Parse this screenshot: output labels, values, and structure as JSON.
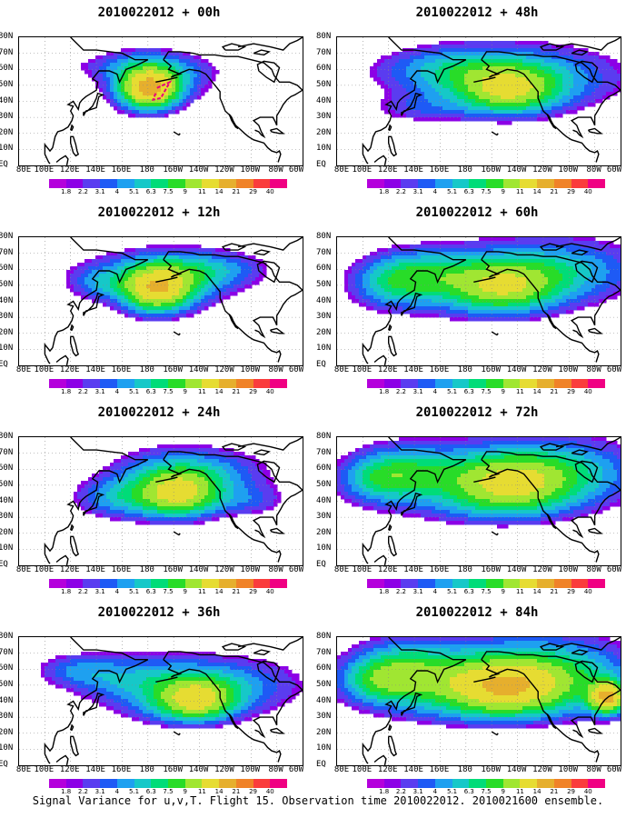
{
  "panels": [
    {
      "title": "2010022012 + 00h",
      "col": 0,
      "row": 0,
      "level": 0
    },
    {
      "title": "2010022012 + 12h",
      "col": 0,
      "row": 1,
      "level": 1
    },
    {
      "title": "2010022012 + 24h",
      "col": 0,
      "row": 2,
      "level": 2
    },
    {
      "title": "2010022012 + 36h",
      "col": 0,
      "row": 3,
      "level": 3
    },
    {
      "title": "2010022012 + 48h",
      "col": 1,
      "row": 0,
      "level": 4
    },
    {
      "title": "2010022012 + 60h",
      "col": 1,
      "row": 1,
      "level": 5
    },
    {
      "title": "2010022012 + 72h",
      "col": 1,
      "row": 2,
      "level": 6
    },
    {
      "title": "2010022012 + 84h",
      "col": 1,
      "row": 3,
      "level": 7
    }
  ],
  "lat_labels": [
    "80N",
    "70N",
    "60N",
    "50N",
    "40N",
    "30N",
    "20N",
    "10N",
    "EQ"
  ],
  "lon_labels": [
    "80E",
    "100E",
    "120E",
    "140E",
    "160E",
    "180",
    "160W",
    "140W",
    "120W",
    "100W",
    "80W",
    "60W"
  ],
  "colorbar": {
    "levels": [
      "1.8",
      "2.2",
      "3.1",
      "4",
      "5.1",
      "6.3",
      "7.5",
      "9",
      "11",
      "14",
      "21",
      "29",
      "40"
    ],
    "colors": [
      "#b400dc",
      "#8c00e6",
      "#5a3cf0",
      "#1e5af5",
      "#1ea0f0",
      "#16c8c8",
      "#00dc78",
      "#28dc28",
      "#a0e632",
      "#e6dc32",
      "#e6af2d",
      "#f08228",
      "#fa3c3c",
      "#f00082"
    ]
  },
  "footer": "Signal Variance for u,v,T. Flight 15. Observation time 2010022012. 2010021600 ensemble."
}
